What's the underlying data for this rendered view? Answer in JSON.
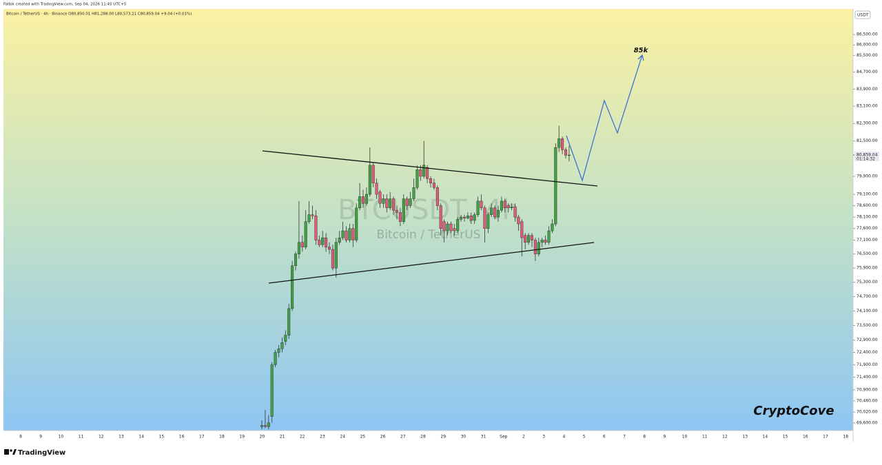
{
  "header": {
    "credit": "Falbik created with TradingView.com, Sep 04, 2026 11:45 UTC+5"
  },
  "chart_data": {
    "type": "candlestick",
    "legend": "Bitcoin / TetherUS · 4h · Binance  O80,850.01 H81,288.00 L80,573.21 C80,859.04 +9.04 (+0.01%)",
    "watermark_title": "BTCUSDT, 4h",
    "watermark_subtitle": "Bitcoin / TetherUS",
    "annotation": "85k",
    "brand": "CryptoCove",
    "currency": "USDT",
    "last_price": {
      "value": 80859.04,
      "label": "80,859.04"
    },
    "countdown": "01:14:32",
    "log_scale": true,
    "ylim": [
      69300,
      87750
    ],
    "yticks": [
      {
        "value": 86500,
        "label": "86,500.00"
      },
      {
        "value": 86000,
        "label": "86,000.00"
      },
      {
        "value": 85500,
        "label": "85,500.00"
      },
      {
        "value": 84700,
        "label": "84,700.00"
      },
      {
        "value": 83900,
        "label": "83,900.00"
      },
      {
        "value": 83100,
        "label": "83,100.00"
      },
      {
        "value": 82300,
        "label": "82,300.00"
      },
      {
        "value": 81500,
        "label": "81,500.00"
      },
      {
        "value": 79900,
        "label": "79,900.00"
      },
      {
        "value": 79100,
        "label": "79,100.00"
      },
      {
        "value": 78600,
        "label": "78,600.00"
      },
      {
        "value": 78100,
        "label": "78,100.00"
      },
      {
        "value": 77600,
        "label": "77,600.00"
      },
      {
        "value": 77100,
        "label": "77,100.00"
      },
      {
        "value": 76500,
        "label": "76,500.00"
      },
      {
        "value": 75900,
        "label": "75,900.00"
      },
      {
        "value": 75300,
        "label": "75,300.00"
      },
      {
        "value": 74700,
        "label": "74,700.00"
      },
      {
        "value": 74100,
        "label": "74,100.00"
      },
      {
        "value": 73500,
        "label": "73,500.00"
      },
      {
        "value": 72900,
        "label": "72,900.00"
      },
      {
        "value": 72400,
        "label": "72,400.00"
      },
      {
        "value": 71900,
        "label": "71,900.00"
      },
      {
        "value": 71400,
        "label": "71,400.00"
      },
      {
        "value": 70900,
        "label": "70,900.00"
      },
      {
        "value": 70460,
        "label": "70,460.00"
      },
      {
        "value": 70020,
        "label": "70,020.00"
      },
      {
        "value": 69600,
        "label": "69,600.00"
      }
    ],
    "x_labels": [
      "8",
      "9",
      "10",
      "11",
      "12",
      "13",
      "14",
      "15",
      "16",
      "17",
      "18",
      "19",
      "20",
      "21",
      "22",
      "23",
      "24",
      "25",
      "26",
      "27",
      "28",
      "29",
      "30",
      "31",
      "Sep",
      "2",
      "3",
      "4",
      "5",
      "6",
      "7",
      "8",
      "9",
      "10",
      "11",
      "12",
      "13",
      "14",
      "15",
      "16",
      "17",
      "18"
    ],
    "up_color": "#43a047",
    "down_color": "#e05a7a",
    "wick_color": "#333333",
    "open": [
      69450,
      69500,
      69450,
      69850,
      71900,
      72400,
      72550,
      72850,
      73100,
      74200,
      76000,
      76500,
      77000,
      76800,
      77900,
      78200,
      78150,
      77100,
      76900,
      77200,
      76800,
      76700,
      75900,
      77000,
      77200,
      77500,
      77100,
      77600,
      77100,
      78500,
      79000,
      78700,
      79100,
      80400,
      79600,
      79200,
      78700,
      78900,
      78500,
      78900,
      78400,
      78300,
      77900,
      78900,
      78600,
      78900,
      79400,
      80200,
      79900,
      80300,
      79800,
      79600,
      79400,
      78600,
      77900,
      77500,
      77800,
      77600,
      77500,
      78000,
      78100,
      78050,
      78150,
      77950,
      78200,
      78800,
      78500,
      77600,
      78200,
      78500,
      78100,
      78400,
      78800,
      78600,
      78500,
      78550,
      78100,
      77900,
      77300,
      77000,
      77300,
      77100,
      76500,
      77000,
      77100,
      77000,
      77500,
      77800,
      81200,
      81600,
      81100,
      80850.01
    ],
    "high": [
      69700,
      70100,
      69900,
      72000,
      72500,
      72700,
      73000,
      73300,
      74400,
      76200,
      76600,
      78800,
      77300,
      78400,
      78800,
      78600,
      78400,
      77300,
      77500,
      77400,
      77000,
      76900,
      77200,
      77500,
      77900,
      77700,
      77800,
      77800,
      78700,
      79600,
      79300,
      79400,
      81200,
      80500,
      79800,
      79300,
      79100,
      79100,
      79200,
      79000,
      78600,
      78500,
      79100,
      79000,
      79200,
      79800,
      80400,
      80400,
      81500,
      80400,
      79900,
      79800,
      79500,
      78700,
      78000,
      77900,
      77900,
      77800,
      78100,
      78200,
      78200,
      78300,
      78300,
      78300,
      79000,
      79100,
      78600,
      78300,
      78700,
      78600,
      78600,
      79000,
      78900,
      78700,
      78700,
      78700,
      78200,
      78000,
      77400,
      77400,
      77400,
      77200,
      77200,
      77200,
      77300,
      77700,
      78000,
      81400,
      82200,
      81700,
      81200,
      81288
    ],
    "low": [
      69350,
      69400,
      69350,
      69600,
      71800,
      72200,
      72400,
      72700,
      72950,
      74100,
      75800,
      76300,
      76600,
      76700,
      77800,
      78000,
      76900,
      76800,
      76800,
      76600,
      76500,
      75800,
      75500,
      76900,
      77100,
      77000,
      77000,
      76800,
      77000,
      78400,
      78500,
      78600,
      79000,
      79400,
      78900,
      78500,
      78500,
      78300,
      78400,
      78200,
      78000,
      77700,
      77800,
      78400,
      78500,
      78800,
      79300,
      79700,
      79800,
      79600,
      79400,
      79300,
      78400,
      77300,
      77000,
      77300,
      77400,
      77300,
      77400,
      77900,
      77900,
      78000,
      77800,
      77800,
      78100,
      78400,
      77000,
      77400,
      78100,
      78000,
      77900,
      78300,
      78300,
      78300,
      78400,
      77900,
      77500,
      76400,
      76700,
      76900,
      76800,
      76200,
      76400,
      76800,
      76900,
      76900,
      77400,
      77700,
      81000,
      80900,
      80700,
      80573.21
    ],
    "close": [
      69500,
      69450,
      69600,
      71900,
      72400,
      72550,
      72800,
      73100,
      74200,
      76000,
      76500,
      77000,
      76800,
      77900,
      78200,
      78150,
      77100,
      76900,
      77200,
      76800,
      76700,
      75900,
      77000,
      77200,
      77500,
      77100,
      77600,
      77100,
      78500,
      79000,
      78700,
      79100,
      80400,
      79600,
      79100,
      78700,
      78900,
      78500,
      78900,
      78400,
      78300,
      77900,
      78900,
      78600,
      78900,
      79400,
      80200,
      79900,
      80400,
      79800,
      79600,
      79400,
      78600,
      77600,
      77500,
      77800,
      77500,
      77500,
      78000,
      78100,
      78050,
      78150,
      77950,
      78200,
      78800,
      78500,
      77600,
      78200,
      78500,
      78100,
      78400,
      78800,
      78500,
      78500,
      78550,
      78100,
      77800,
      77200,
      77000,
      77300,
      77100,
      76500,
      77000,
      77100,
      77000,
      77500,
      77800,
      81200,
      81600,
      81100,
      80850,
      80859.04
    ]
  },
  "footer": {
    "logo": "TradingView"
  }
}
